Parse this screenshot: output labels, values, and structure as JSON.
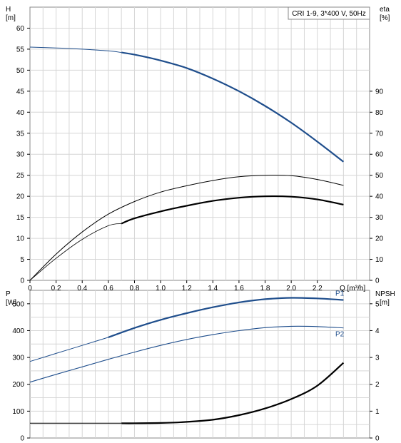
{
  "chart_data": [
    {
      "type": "line",
      "legend": "CRI 1-9, 3*400 V, 50Hz",
      "legend_position": "top-right",
      "grid": true,
      "left_axis": {
        "title": "H",
        "unit": "[m]",
        "ylim": [
          0,
          65
        ],
        "ticks": [
          0,
          5,
          10,
          15,
          20,
          25,
          30,
          35,
          40,
          45,
          50,
          55,
          60
        ]
      },
      "right_axis": {
        "title": "eta",
        "unit": "[%]",
        "ylim": [
          0,
          130
        ],
        "ticks": [
          0,
          10,
          20,
          30,
          40,
          50,
          60,
          70,
          80,
          90
        ]
      },
      "x_axis": {
        "title": "Q [m³/h]",
        "xlim": [
          0,
          2.6
        ],
        "ticks": [
          0,
          0.2,
          0.4,
          0.6,
          0.8,
          1.0,
          1.2,
          1.4,
          1.6,
          1.8,
          2.0,
          2.2
        ],
        "tick_labels": [
          "0",
          "0.2",
          "0.4",
          "0.6",
          "0.8",
          "1.0",
          "1.2",
          "1.4",
          "1.6",
          "1.8",
          "2.0",
          "2.2"
        ]
      },
      "series": [
        {
          "axis": "left",
          "color": "#1f4e8c",
          "x": [
            0,
            0.2,
            0.4,
            0.6,
            0.7,
            0.8,
            1.0,
            1.2,
            1.4,
            1.6,
            1.8,
            2.0,
            2.2,
            2.4
          ],
          "y": [
            55.5,
            55.3,
            55.0,
            54.6,
            54.2,
            53.7,
            52.3,
            50.5,
            48.0,
            45.0,
            41.5,
            37.5,
            33.0,
            28.2
          ]
        },
        {
          "axis": "right",
          "color": "#000000",
          "x": [
            0,
            0.2,
            0.4,
            0.6,
            0.8,
            1.0,
            1.2,
            1.4,
            1.6,
            1.8,
            2.0,
            2.2,
            2.4
          ],
          "y": [
            0,
            12.5,
            23,
            31.5,
            37.5,
            42,
            45,
            47.5,
            49.3,
            50.0,
            49.8,
            48.0,
            45.2
          ]
        },
        {
          "axis": "right",
          "color": "#000000",
          "x": [
            0,
            0.2,
            0.4,
            0.6,
            0.7,
            0.8,
            1.0,
            1.2,
            1.4,
            1.6,
            1.8,
            2.0,
            2.2,
            2.4
          ],
          "y": [
            0,
            10.5,
            19.5,
            26.0,
            27.0,
            29.5,
            32.8,
            35.5,
            37.8,
            39.3,
            40.0,
            39.8,
            38.5,
            36.0
          ]
        }
      ]
    },
    {
      "type": "line",
      "grid": true,
      "left_axis": {
        "title": "P",
        "unit": "[W]",
        "ylim": [
          0,
          550
        ],
        "ticks": [
          0,
          100,
          200,
          300,
          400,
          500
        ]
      },
      "right_axis": {
        "title": "NPSH",
        "unit": "[m]",
        "ylim": [
          0,
          5.5
        ],
        "ticks": [
          0,
          1,
          2,
          3,
          4,
          5
        ]
      },
      "xlim": [
        0,
        2.6
      ],
      "series": [
        {
          "name": "P1",
          "axis": "left",
          "color": "#1f4e8c",
          "x": [
            0,
            0.2,
            0.4,
            0.6,
            0.8,
            1.0,
            1.2,
            1.4,
            1.6,
            1.8,
            2.0,
            2.2,
            2.4
          ],
          "y": [
            285,
            315,
            345,
            375,
            410,
            440,
            465,
            487,
            505,
            517,
            522,
            520,
            514
          ]
        },
        {
          "name": "P2",
          "axis": "left",
          "color": "#1f4e8c",
          "x": [
            0,
            0.2,
            0.4,
            0.6,
            0.8,
            1.0,
            1.2,
            1.4,
            1.6,
            1.8,
            2.0,
            2.2,
            2.4
          ],
          "y": [
            208,
            237,
            265,
            293,
            320,
            345,
            367,
            385,
            400,
            411,
            416,
            415,
            410
          ]
        },
        {
          "axis": "right",
          "color": "#000000",
          "x": [
            0,
            0.2,
            0.4,
            0.6,
            0.7,
            0.8,
            1.0,
            1.2,
            1.4,
            1.6,
            1.8,
            2.0,
            2.2,
            2.4
          ],
          "y": [
            0.55,
            0.55,
            0.55,
            0.55,
            0.55,
            0.55,
            0.56,
            0.6,
            0.68,
            0.85,
            1.1,
            1.45,
            1.95,
            2.8
          ]
        }
      ]
    }
  ]
}
